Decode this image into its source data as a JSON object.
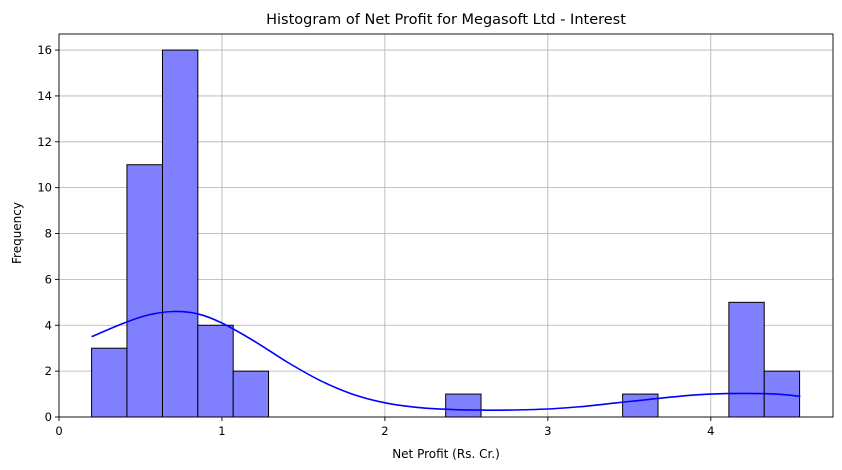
{
  "chart_data": {
    "type": "bar",
    "subtype": "histogram",
    "title": "Histogram of Net Profit for Megasoft Ltd - Interest",
    "xlabel": "Net Profit (Rs. Cr.)",
    "ylabel": "Frequency",
    "xlim": [
      0,
      4.75
    ],
    "ylim": [
      0,
      16.7
    ],
    "xticks": [
      0,
      1,
      2,
      3,
      4
    ],
    "yticks": [
      0,
      2,
      4,
      6,
      8,
      10,
      12,
      14,
      16
    ],
    "grid": true,
    "bins": [
      {
        "x0": 0.2,
        "x1": 0.417,
        "count": 3
      },
      {
        "x0": 0.417,
        "x1": 0.635,
        "count": 11
      },
      {
        "x0": 0.635,
        "x1": 0.852,
        "count": 16
      },
      {
        "x0": 0.852,
        "x1": 1.069,
        "count": 4
      },
      {
        "x0": 1.069,
        "x1": 1.286,
        "count": 2
      },
      {
        "x0": 1.286,
        "x1": 1.504,
        "count": 0
      },
      {
        "x0": 1.504,
        "x1": 1.721,
        "count": 0
      },
      {
        "x0": 1.721,
        "x1": 1.938,
        "count": 0
      },
      {
        "x0": 1.938,
        "x1": 2.155,
        "count": 0
      },
      {
        "x0": 2.155,
        "x1": 2.373,
        "count": 0
      },
      {
        "x0": 2.373,
        "x1": 2.59,
        "count": 1
      },
      {
        "x0": 2.59,
        "x1": 2.807,
        "count": 0
      },
      {
        "x0": 2.807,
        "x1": 3.024,
        "count": 0
      },
      {
        "x0": 3.024,
        "x1": 3.242,
        "count": 0
      },
      {
        "x0": 3.242,
        "x1": 3.459,
        "count": 0
      },
      {
        "x0": 3.459,
        "x1": 3.676,
        "count": 1
      },
      {
        "x0": 3.676,
        "x1": 3.893,
        "count": 0
      },
      {
        "x0": 3.893,
        "x1": 4.111,
        "count": 0
      },
      {
        "x0": 4.111,
        "x1": 4.328,
        "count": 5
      },
      {
        "x0": 4.328,
        "x1": 4.545,
        "count": 2
      }
    ],
    "kde": {
      "x": [
        0.2,
        0.4,
        0.55,
        0.7,
        0.85,
        1.0,
        1.2,
        1.4,
        1.6,
        1.8,
        2.0,
        2.2,
        2.4,
        2.6,
        2.75,
        3.0,
        3.2,
        3.4,
        3.6,
        3.8,
        4.0,
        4.2,
        4.4,
        4.55
      ],
      "y": [
        3.5,
        4.1,
        4.45,
        4.6,
        4.5,
        4.1,
        3.3,
        2.4,
        1.6,
        1.0,
        0.62,
        0.42,
        0.33,
        0.3,
        0.3,
        0.35,
        0.45,
        0.6,
        0.75,
        0.9,
        1.0,
        1.03,
        1.0,
        0.9
      ]
    },
    "colors": {
      "bar_fill": "#8080ff",
      "bar_edge": "#000000",
      "kde_line": "#0000ff",
      "grid": "#b0b0b0"
    }
  }
}
